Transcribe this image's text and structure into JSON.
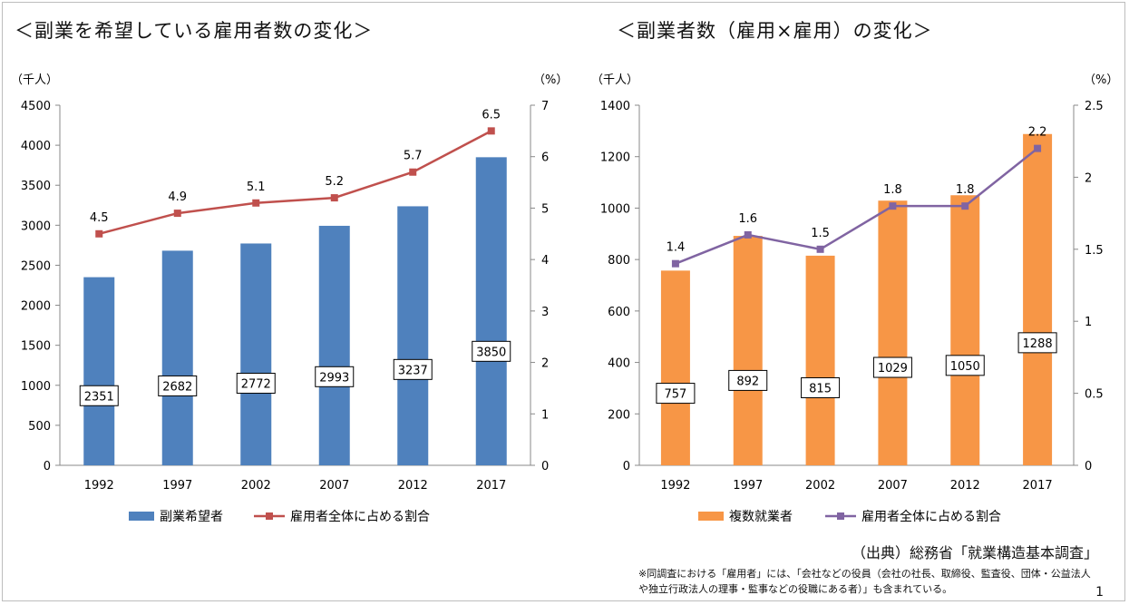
{
  "left_chart_title": "＜副業を希望している雇用者数の変化＞",
  "right_chart_title": "＜副業者数（雇用×雇用）の変化＞",
  "source_text": "（出典）総務省「就業構造基本調査」",
  "note_text": "※同調査における「雇用者」には、「会社などの役員（会社の社長、取締役、監査役、団体・公益法人や独立行政法人の理事・監事などの役職にある者）」も含まれている。",
  "page_number": "1",
  "colors": {
    "left_bar": "#4f81bd",
    "left_line": "#c0504d",
    "right_bar": "#f79646",
    "right_line": "#8064a2"
  },
  "chart_data": [
    {
      "type": "bar+line",
      "title": "＜副業を希望している雇用者数の変化＞",
      "categories": [
        "1992",
        "1997",
        "2002",
        "2007",
        "2012",
        "2017"
      ],
      "y_unit_left": "（千人）",
      "y_unit_right": "（%）",
      "ylim_left": [
        0,
        4500
      ],
      "yticks_left": [
        "0",
        "500",
        "1000",
        "1500",
        "2000",
        "2500",
        "3000",
        "3500",
        "4000",
        "4500"
      ],
      "ylim_right": [
        0,
        7
      ],
      "yticks_right": [
        "0",
        "1",
        "2",
        "3",
        "4",
        "5",
        "6",
        "7"
      ],
      "series": [
        {
          "name": "副業希望者",
          "kind": "bar",
          "axis": "left",
          "values": [
            2351,
            2682,
            2772,
            2993,
            3237,
            3850
          ],
          "labels": [
            "2351",
            "2682",
            "2772",
            "2993",
            "3237",
            "3850"
          ]
        },
        {
          "name": "雇用者全体に占める割合",
          "kind": "line",
          "axis": "right",
          "values": [
            4.5,
            4.9,
            5.1,
            5.2,
            5.7,
            6.5
          ],
          "labels": [
            "4.5",
            "4.9",
            "5.1",
            "5.2",
            "5.7",
            "6.5"
          ]
        }
      ],
      "legend": "bottom"
    },
    {
      "type": "bar+line",
      "title": "＜副業者数（雇用×雇用）の変化＞",
      "categories": [
        "1992",
        "1997",
        "2002",
        "2007",
        "2012",
        "2017"
      ],
      "y_unit_left": "（千人）",
      "y_unit_right": "（%）",
      "ylim_left": [
        0,
        1400
      ],
      "yticks_left": [
        "0",
        "200",
        "400",
        "600",
        "800",
        "1000",
        "1200",
        "1400"
      ],
      "ylim_right": [
        0,
        2.5
      ],
      "yticks_right": [
        "0",
        "0.5",
        "1",
        "1.5",
        "2",
        "2.5"
      ],
      "series": [
        {
          "name": "複数就業者",
          "kind": "bar",
          "axis": "left",
          "values": [
            757,
            892,
            815,
            1029,
            1050,
            1288
          ],
          "labels": [
            "757",
            "892",
            "815",
            "1029",
            "1050",
            "1288"
          ]
        },
        {
          "name": "雇用者全体に占める割合",
          "kind": "line",
          "axis": "right",
          "values": [
            1.4,
            1.6,
            1.5,
            1.8,
            1.8,
            2.2
          ],
          "labels": [
            "1.4",
            "1.6",
            "1.5",
            "1.8",
            "1.8",
            "2.2"
          ]
        }
      ],
      "legend": "bottom"
    }
  ]
}
